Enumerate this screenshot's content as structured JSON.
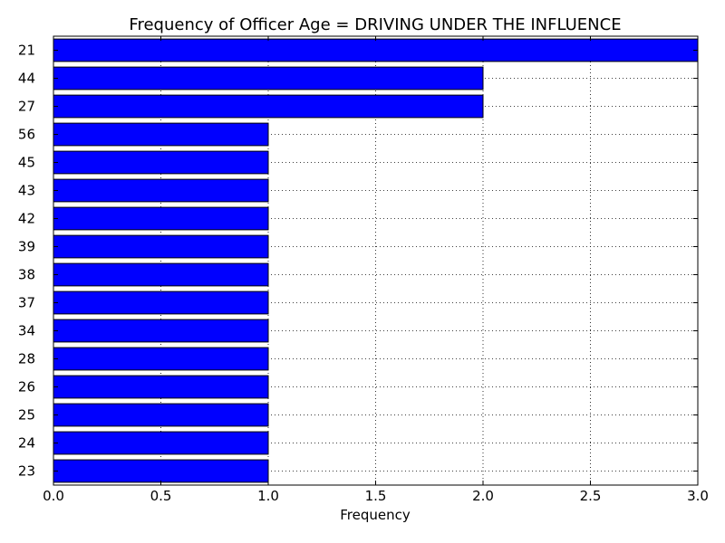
{
  "chart_data": {
    "type": "bar",
    "orientation": "horizontal",
    "title": "Frequency of Officer Age = DRIVING UNDER THE INFLUENCE",
    "xlabel": "Frequency",
    "ylabel": "",
    "xlim": [
      0,
      3
    ],
    "xticks": [
      "0.0",
      "0.5",
      "1.0",
      "1.5",
      "2.0",
      "2.5",
      "3.0"
    ],
    "grid": true,
    "bar_color": "#0000ff",
    "categories": [
      "21",
      "44",
      "27",
      "56",
      "45",
      "43",
      "42",
      "39",
      "38",
      "37",
      "34",
      "28",
      "26",
      "25",
      "24",
      "23"
    ],
    "values": [
      3,
      2,
      2,
      1,
      1,
      1,
      1,
      1,
      1,
      1,
      1,
      1,
      1,
      1,
      1,
      1
    ]
  }
}
